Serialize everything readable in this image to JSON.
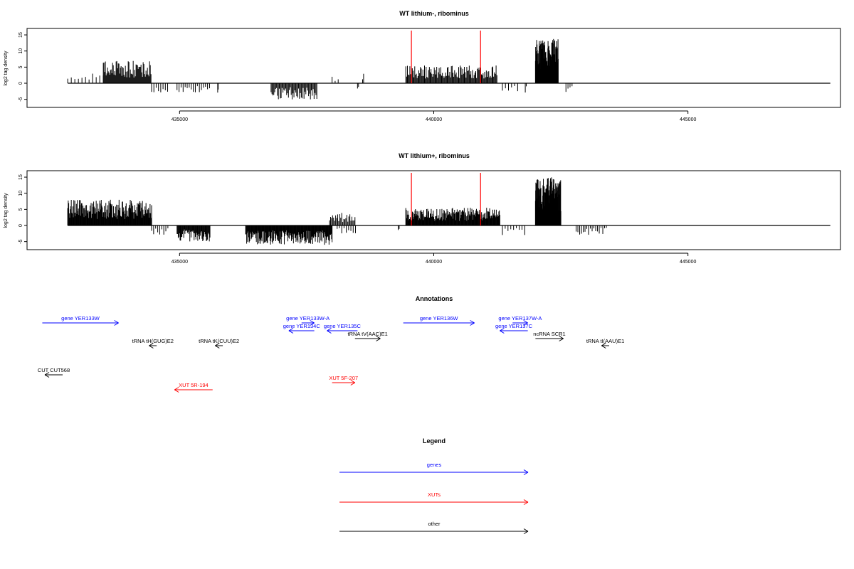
{
  "chart_data": [
    {
      "type": "bar",
      "title": "WT lithium-, ribominus",
      "ylabel": "log2 tag density",
      "xlim": [
        432000,
        448000
      ],
      "ylim": [
        -7.5,
        17
      ],
      "xticks": [
        435000,
        440000,
        445000
      ],
      "xtick_labels": [
        "435000",
        "440000",
        "445000"
      ],
      "yticks": [
        -5,
        0,
        5,
        10,
        15
      ],
      "ytick_labels": [
        "-5",
        "0",
        "5",
        "10",
        "15"
      ],
      "baseline": {
        "from": 432800,
        "to": 447800
      },
      "markers": [
        {
          "x": 439560,
          "color": "#ff0000"
        },
        {
          "x": 440920,
          "color": "#ff0000"
        }
      ],
      "plus_strand": [
        {
          "from": 432800,
          "to": 433500,
          "step": 70,
          "amp": 3
        },
        {
          "from": 433500,
          "to": 434450,
          "step": 14,
          "amp": 7
        },
        {
          "from": 438000,
          "to": 438150,
          "step": 60,
          "amp": 2.5
        },
        {
          "from": 438600,
          "to": 438620,
          "step": 20,
          "amp": 4
        },
        {
          "from": 439450,
          "to": 441250,
          "step": 16,
          "amp": 5.5
        },
        {
          "from": 442000,
          "to": 442450,
          "step": 4,
          "amp": 14
        }
      ],
      "minus_strand": [
        {
          "from": 434450,
          "to": 434800,
          "step": 45,
          "amp": 3
        },
        {
          "from": 434950,
          "to": 435600,
          "step": 40,
          "amp": 3
        },
        {
          "from": 435750,
          "to": 435760,
          "step": 10,
          "amp": 3
        },
        {
          "from": 436800,
          "to": 437700,
          "step": 18,
          "amp": 5
        },
        {
          "from": 438500,
          "to": 438520,
          "step": 20,
          "amp": 2
        },
        {
          "from": 441350,
          "to": 441700,
          "step": 60,
          "amp": 2.5
        },
        {
          "from": 441800,
          "to": 441820,
          "step": 20,
          "amp": 3
        },
        {
          "from": 442600,
          "to": 442750,
          "step": 40,
          "amp": 3
        }
      ]
    },
    {
      "type": "bar",
      "title": "WT lithium+, ribominus",
      "ylabel": "log2 tag density",
      "xlim": [
        432000,
        448000
      ],
      "ylim": [
        -7.5,
        17
      ],
      "xticks": [
        435000,
        440000,
        445000
      ],
      "xtick_labels": [
        "435000",
        "440000",
        "445000"
      ],
      "yticks": [
        -5,
        0,
        5,
        10,
        15
      ],
      "ytick_labels": [
        "-5",
        "0",
        "5",
        "10",
        "15"
      ],
      "baseline": {
        "from": 432800,
        "to": 447800
      },
      "markers": [
        {
          "x": 439560,
          "color": "#ff0000"
        },
        {
          "x": 440920,
          "color": "#ff0000"
        }
      ],
      "plus_strand": [
        {
          "from": 432800,
          "to": 434450,
          "step": 10,
          "amp": 8
        },
        {
          "from": 437950,
          "to": 438450,
          "step": 20,
          "amp": 4
        },
        {
          "from": 439450,
          "to": 441300,
          "step": 10,
          "amp": 5.5
        },
        {
          "from": 442000,
          "to": 442500,
          "step": 4,
          "amp": 15
        }
      ],
      "minus_strand": [
        {
          "from": 434450,
          "to": 434800,
          "step": 40,
          "amp": 3
        },
        {
          "from": 434950,
          "to": 435600,
          "step": 12,
          "amp": 5
        },
        {
          "from": 436300,
          "to": 438000,
          "step": 10,
          "amp": 6
        },
        {
          "from": 438100,
          "to": 438500,
          "step": 45,
          "amp": 2.5
        },
        {
          "from": 439300,
          "to": 439320,
          "step": 20,
          "amp": 2
        },
        {
          "from": 441350,
          "to": 441800,
          "step": 55,
          "amp": 3
        },
        {
          "from": 442800,
          "to": 443400,
          "step": 35,
          "amp": 3
        }
      ]
    }
  ],
  "annotations": {
    "title": "Annotations",
    "items": [
      {
        "label": "gene YER133W",
        "color": "#0000ff",
        "x1": 432300,
        "x2": 433800,
        "dir": "right",
        "row": 0
      },
      {
        "label": "gene YER133W-A",
        "color": "#0000ff",
        "x1": 437400,
        "x2": 437650,
        "dir": "right",
        "row": 0
      },
      {
        "label": "gene YER134C",
        "color": "#0000ff",
        "x1": 437150,
        "x2": 437650,
        "dir": "left",
        "row": 1
      },
      {
        "label": "gene YER135C",
        "color": "#0000ff",
        "x1": 437900,
        "x2": 438500,
        "dir": "left",
        "row": 1
      },
      {
        "label": "tRNA tV(AAC)E1",
        "color": "#000000",
        "x1": 438450,
        "x2": 438950,
        "dir": "right",
        "row": 2
      },
      {
        "label": "tRNA tH(GUG)E2",
        "color": "#000000",
        "x1": 434400,
        "x2": 434550,
        "dir": "left",
        "row": 3
      },
      {
        "label": "tRNA tK(CUU)E2",
        "color": "#000000",
        "x1": 435700,
        "x2": 435850,
        "dir": "left",
        "row": 3
      },
      {
        "label": "gene YER136W",
        "color": "#0000ff",
        "x1": 439400,
        "x2": 440800,
        "dir": "right",
        "row": 0
      },
      {
        "label": "gene YER137W-A",
        "color": "#0000ff",
        "x1": 441550,
        "x2": 441850,
        "dir": "right",
        "row": 0
      },
      {
        "label": "gene YER137C",
        "color": "#0000ff",
        "x1": 441300,
        "x2": 441850,
        "dir": "left",
        "row": 1
      },
      {
        "label": "ncRNA SCR1",
        "color": "#000000",
        "x1": 442000,
        "x2": 442550,
        "dir": "right",
        "row": 2
      },
      {
        "label": "tRNA tI(AAU)E1",
        "color": "#000000",
        "x1": 443300,
        "x2": 443450,
        "dir": "left",
        "row": 3
      },
      {
        "label": "CUT CUT568",
        "color": "#000000",
        "x1": 432350,
        "x2": 432700,
        "dir": "left",
        "row": 4
      },
      {
        "label": "XUT 5R-194",
        "color": "#ff0000",
        "x1": 434900,
        "x2": 435650,
        "dir": "left",
        "row": 6
      },
      {
        "label": "XUT 5F-207",
        "color": "#ff0000",
        "x1": 438000,
        "x2": 438450,
        "dir": "right",
        "row": 5
      }
    ]
  },
  "legend": {
    "title": "Legend",
    "items": [
      {
        "label": "genes",
        "color": "#0000ff"
      },
      {
        "label": "XUTs",
        "color": "#ff0000"
      },
      {
        "label": "other",
        "color": "#000000"
      }
    ]
  }
}
